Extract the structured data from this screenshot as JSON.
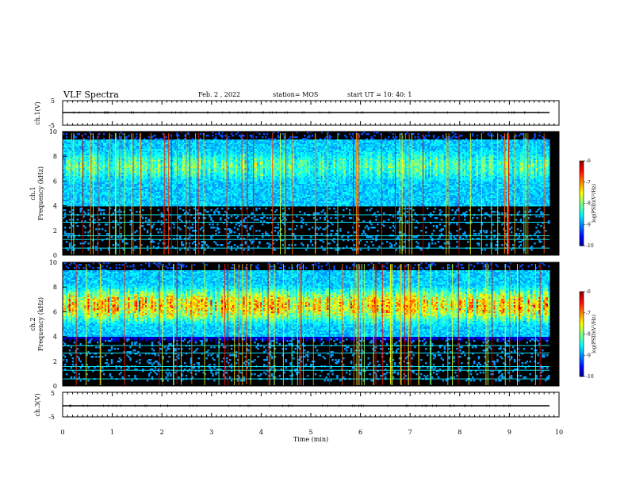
{
  "header": {
    "title": "VLF Spectra",
    "date": "Feb. 2 , 2022",
    "station": "station= MOS",
    "start_ut": "start UT =  10: 40: 1"
  },
  "chart_data": [
    {
      "type": "line",
      "panel": "waveform-ch1",
      "ylabel": "ch.1(V)",
      "ylim": [
        -5,
        5
      ],
      "y_ticks": [
        "5",
        "-5"
      ],
      "x": [
        0,
        9.8
      ],
      "values": [
        0,
        0
      ]
    },
    {
      "type": "heatmap",
      "panel": "spectrogram-ch1",
      "ylabel": "ch.1\nFrequency (kHz)",
      "ylim": [
        0,
        10
      ],
      "y_ticks": [
        "0",
        "2",
        "4",
        "6",
        "8",
        "10"
      ],
      "band_center_khz": 7.2,
      "band_intensity": 0.6,
      "colorbar": {
        "label": "log(PSD)(V²/Hz)",
        "range": [
          -10,
          -6
        ],
        "ticks": [
          "-6",
          "-7",
          "-8",
          "-9",
          "-10"
        ]
      }
    },
    {
      "type": "heatmap",
      "panel": "spectrogram-ch2",
      "ylabel": "ch.2\nFrequency (kHz)",
      "ylim": [
        0,
        10
      ],
      "y_ticks": [
        "0",
        "2",
        "4",
        "6",
        "8",
        "10"
      ],
      "band_center_khz": 6.5,
      "band_intensity": 0.85,
      "colorbar": {
        "label": "log(PSD)(V²/Hz)",
        "range": [
          -10,
          -6
        ],
        "ticks": [
          "-6",
          "-7",
          "-8",
          "-9",
          "-10"
        ]
      }
    },
    {
      "type": "line",
      "panel": "waveform-ch3",
      "ylabel": "ch.3(V)",
      "ylim": [
        -5,
        5
      ],
      "y_ticks": [
        "5",
        "-5"
      ],
      "x": [
        0,
        9.8
      ],
      "values": [
        0,
        0
      ]
    }
  ],
  "x_axis": {
    "label": "Time  (min)",
    "range": [
      0,
      10
    ],
    "ticks": [
      "0",
      "1",
      "2",
      "3",
      "4",
      "5",
      "6",
      "7",
      "8",
      "9",
      "10"
    ]
  },
  "colors": {
    "frame": "#000000",
    "background": "#ffffff"
  }
}
